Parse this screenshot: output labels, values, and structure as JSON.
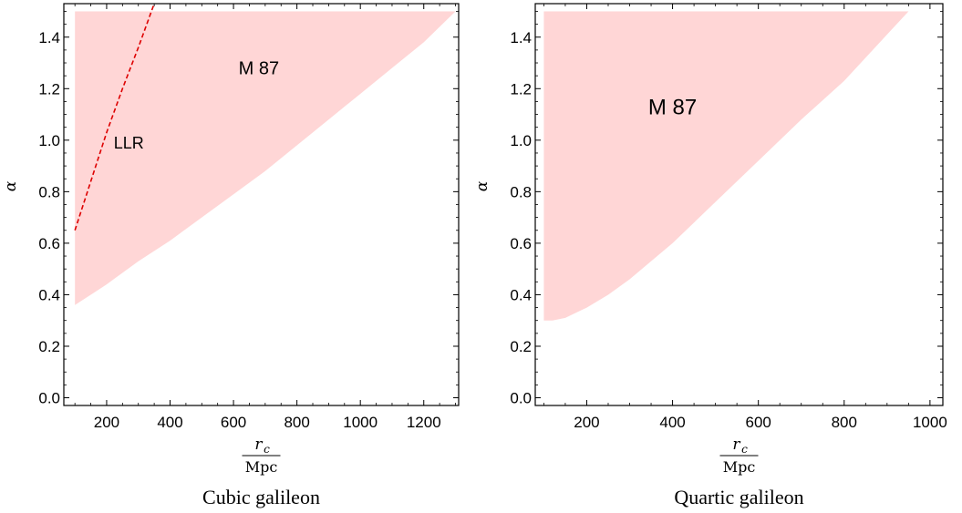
{
  "chart_data": [
    {
      "type": "area",
      "caption": "Cubic galileon",
      "xlabel": {
        "numerator": "r",
        "subscript": "c",
        "denominator": "Mpc"
      },
      "ylabel": "α",
      "xlim": [
        65,
        1310
      ],
      "ylim": [
        -0.03,
        1.53
      ],
      "xticks": [
        200,
        400,
        600,
        800,
        1000,
        1200
      ],
      "xtick_labels": [
        "200",
        "400",
        "600",
        "800",
        "1000",
        "1200"
      ],
      "yticks": [
        0.0,
        0.2,
        0.4,
        0.6,
        0.8,
        1.0,
        1.2,
        1.4
      ],
      "ytick_labels": [
        "0.0",
        "0.2",
        "0.4",
        "0.6",
        "0.8",
        "1.0",
        "1.2",
        "1.4"
      ],
      "regions": [
        {
          "label": "M 87",
          "color": "#ffd6d6",
          "upper_bound": 1.5,
          "x_start": 100,
          "lower_boundary": {
            "x": [
              100,
              150,
              200,
              300,
              400,
              500,
              600,
              700,
              800,
              900,
              1000,
              1100,
              1200,
              1300
            ],
            "y": [
              0.36,
              0.4,
              0.44,
              0.53,
              0.61,
              0.7,
              0.79,
              0.88,
              0.98,
              1.08,
              1.18,
              1.28,
              1.38,
              1.5
            ]
          }
        }
      ],
      "series": [
        {
          "name": "LLR",
          "style": "dashed",
          "color": "#dd0000",
          "x": [
            100,
            150,
            200,
            250,
            300,
            350
          ],
          "y": [
            0.65,
            0.84,
            1.03,
            1.2,
            1.36,
            1.53
          ]
        }
      ],
      "annotations": [
        {
          "text": "M 87",
          "x": 680,
          "y": 1.28
        },
        {
          "text": "LLR",
          "x": 270,
          "y": 0.99
        }
      ]
    },
    {
      "type": "area",
      "caption": "Quartic galileon",
      "xlabel": {
        "numerator": "r",
        "subscript": "c",
        "denominator": "Mpc"
      },
      "ylabel": "α",
      "xlim": [
        80,
        1030
      ],
      "ylim": [
        -0.03,
        1.53
      ],
      "xticks": [
        200,
        400,
        600,
        800,
        1000
      ],
      "xtick_labels": [
        "200",
        "400",
        "600",
        "800",
        "1000"
      ],
      "yticks": [
        0.0,
        0.2,
        0.4,
        0.6,
        0.8,
        1.0,
        1.2,
        1.4
      ],
      "ytick_labels": [
        "0.0",
        "0.2",
        "0.4",
        "0.6",
        "0.8",
        "1.0",
        "1.2",
        "1.4"
      ],
      "regions": [
        {
          "label": "M 87",
          "color": "#ffd6d6",
          "upper_bound": 1.5,
          "x_start": 100,
          "lower_boundary": {
            "x": [
              100,
              120,
              150,
              200,
              250,
              300,
              400,
              500,
              600,
              700,
              800,
              900,
              950
            ],
            "y": [
              0.3,
              0.3,
              0.31,
              0.35,
              0.4,
              0.46,
              0.6,
              0.76,
              0.92,
              1.08,
              1.23,
              1.41,
              1.5
            ]
          }
        }
      ],
      "series": [],
      "annotations": [
        {
          "text": "M 87",
          "x": 400,
          "y": 1.13
        }
      ]
    }
  ]
}
